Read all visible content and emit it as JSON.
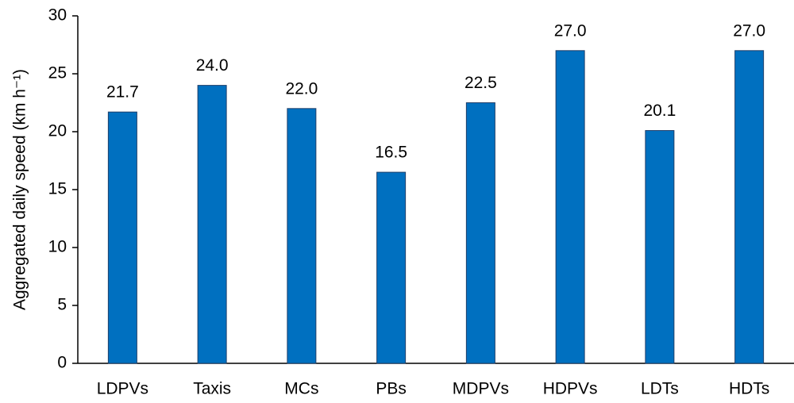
{
  "chart_data": {
    "type": "bar",
    "ylabel": "Aggregated daily speed (km h⁻¹)",
    "categories": [
      "LDPVs",
      "Taxis",
      "MCs",
      "PBs",
      "MDPVs",
      "HDPVs",
      "LDTs",
      "HDTs"
    ],
    "values": [
      21.7,
      24.0,
      22.0,
      16.5,
      22.5,
      27.0,
      20.1,
      27.0
    ],
    "value_labels": [
      "21.7",
      "24.0",
      "22.0",
      "16.5",
      "22.5",
      "27.0",
      "20.1",
      "27.0"
    ],
    "color": "#0070c0",
    "ylim": [
      0,
      30
    ],
    "yticks": [
      0,
      5,
      10,
      15,
      20,
      25,
      30
    ],
    "grid": false
  }
}
